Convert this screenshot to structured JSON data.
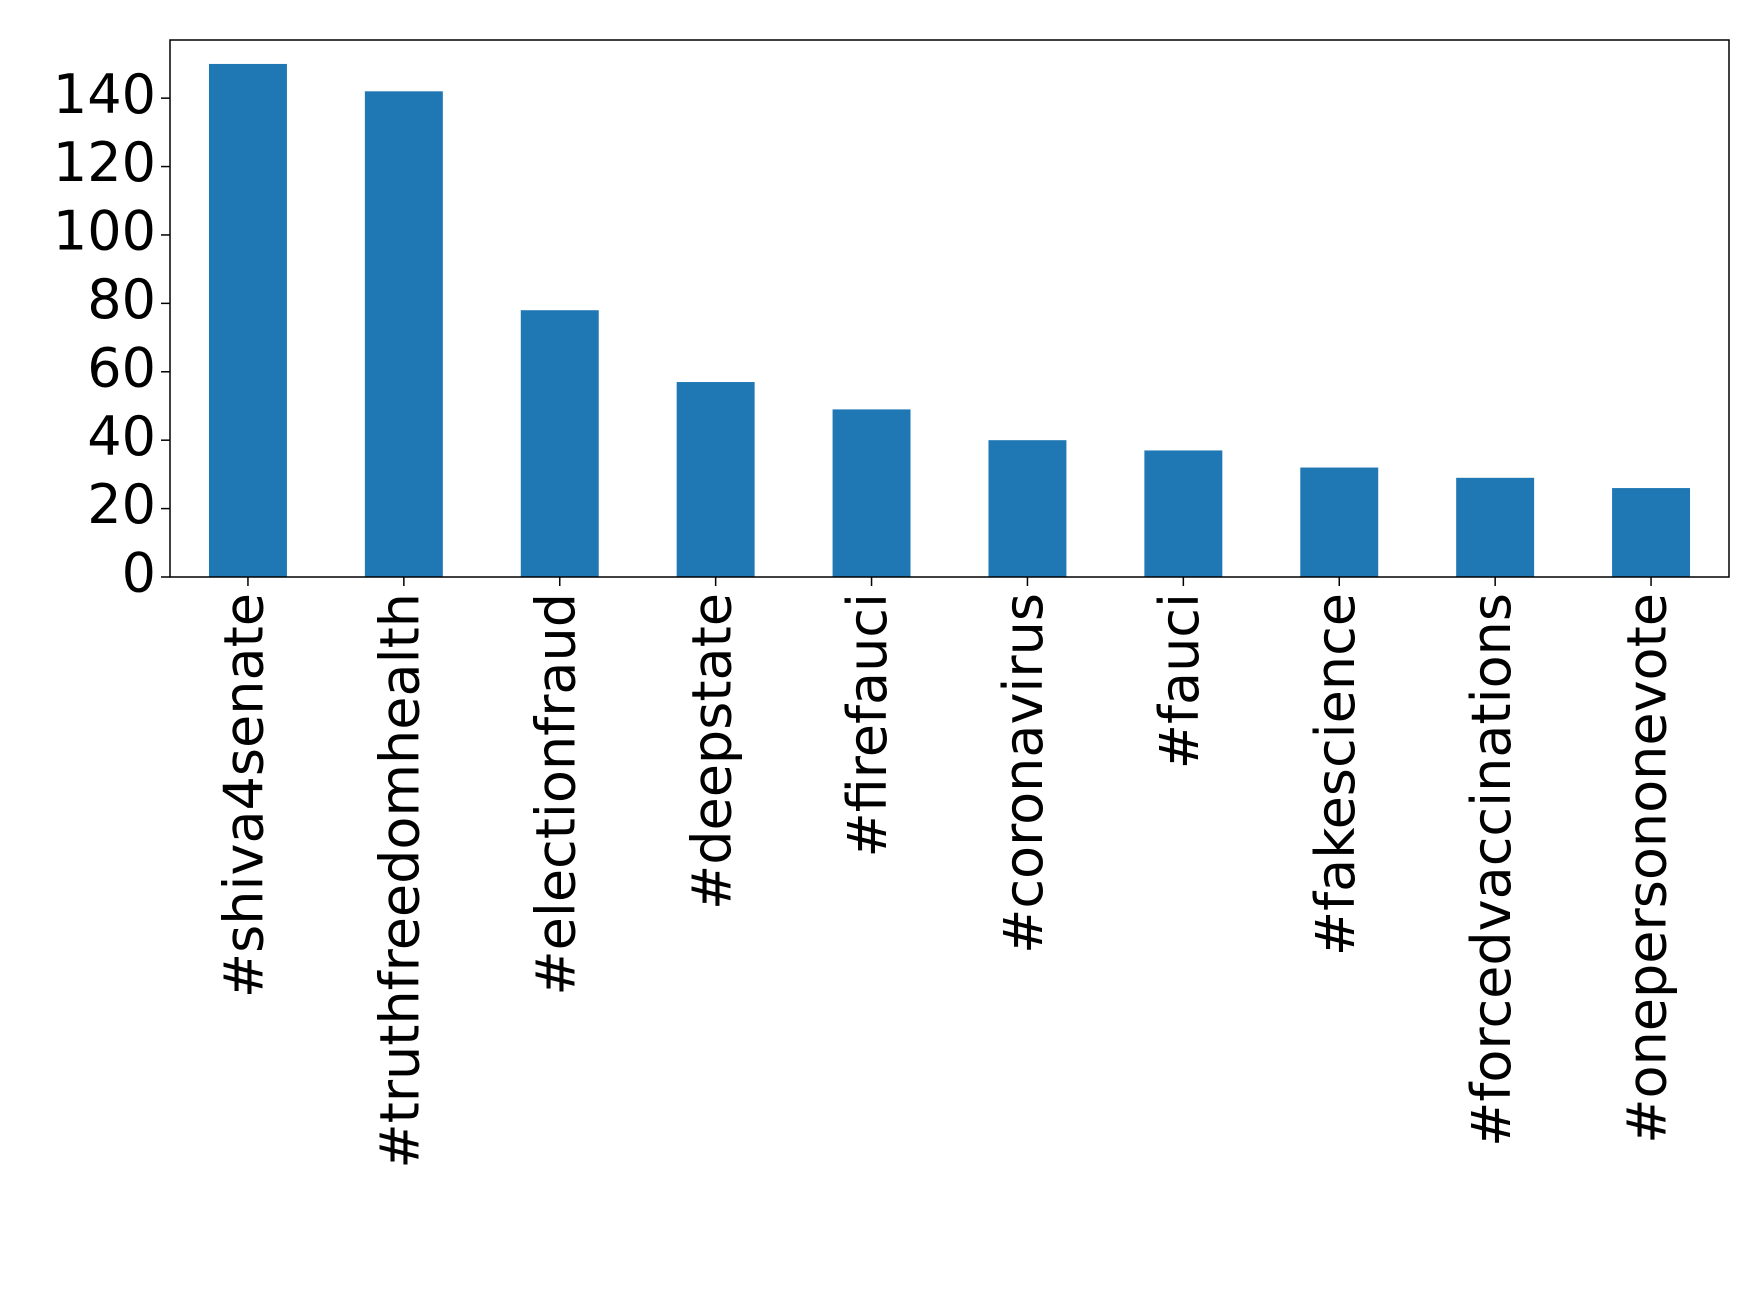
{
  "chart_data": {
    "type": "bar",
    "categories": [
      "#shiva4senate",
      "#truthfreedomhealth",
      "#electionfraud",
      "#deepstate",
      "#firefauci",
      "#coronavirus",
      "#fauci",
      "#fakescience",
      "#forcedvaccinations",
      "#onepersononevote"
    ],
    "values": [
      150,
      142,
      78,
      57,
      49,
      40,
      37,
      32,
      29,
      26
    ],
    "color": "#1f77b4",
    "ylim": [
      0,
      157
    ],
    "yticks": [
      0,
      20,
      40,
      60,
      80,
      100,
      120,
      140
    ],
    "grid": false
  }
}
